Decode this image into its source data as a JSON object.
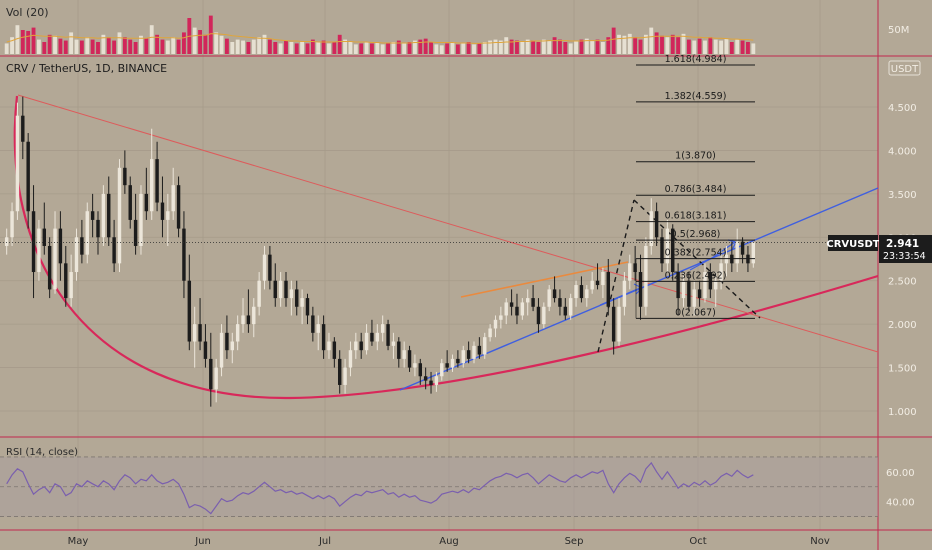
{
  "header": {
    "vol_label": "Vol (20)",
    "symbol_line": "CRV / TetherUS, 1D, BINANCE",
    "currency_badge": "USDT",
    "rsi_label": "RSI (14, close)"
  },
  "price_badge": {
    "symbol": "CRVUSDT",
    "price": "2.941",
    "countdown": "23:33:54",
    "value": 2.941
  },
  "colors": {
    "background": "#b3a896",
    "grid": "#a69b8a",
    "pane_divider": "#c2284f",
    "bull_candle": "#ece6da",
    "bear_candle": "#1c1c1c",
    "vol_bull": "#e6e0d2",
    "vol_bear": "#d1265a",
    "vol_ma": "#e0a53a",
    "rsi_line": "#7a5fae",
    "downtrend_line": "#dd5b5b",
    "uptrend_line": "#3f5fe0",
    "orange_line": "#ea8a3e",
    "cup_curve": "#d8285a",
    "fib_line": "#1a1a1a"
  },
  "chart_data": [
    {
      "type": "candlestick",
      "title": "CRV / TetherUS, 1D, BINANCE",
      "x_labels": [
        "May",
        "Jun",
        "Jul",
        "Aug",
        "Sep",
        "Oct",
        "Nov"
      ],
      "y_ticks": [
        "1.000",
        "1.500",
        "2.000",
        "2.500",
        "3.000",
        "3.500",
        "4.000",
        "4.500"
      ],
      "y_tick_values": [
        1.0,
        1.5,
        2.0,
        2.5,
        3.0,
        3.5,
        4.0,
        4.5
      ],
      "ylim": [
        0.85,
        5.0
      ],
      "grid": true,
      "candles": [
        [
          2.9,
          3.1,
          2.8,
          3.0
        ],
        [
          3.0,
          3.4,
          2.9,
          3.3
        ],
        [
          3.3,
          4.55,
          3.2,
          4.4
        ],
        [
          4.4,
          4.62,
          3.9,
          4.1
        ],
        [
          4.1,
          4.2,
          3.1,
          3.3
        ],
        [
          3.3,
          3.6,
          2.3,
          2.6
        ],
        [
          2.6,
          3.2,
          2.5,
          3.1
        ],
        [
          3.1,
          3.4,
          2.8,
          2.9
        ],
        [
          2.9,
          3.0,
          2.3,
          2.4
        ],
        [
          2.4,
          3.3,
          2.35,
          3.1
        ],
        [
          3.1,
          3.3,
          2.5,
          2.7
        ],
        [
          2.7,
          2.9,
          2.2,
          2.3
        ],
        [
          2.3,
          2.8,
          2.2,
          2.6
        ],
        [
          2.6,
          3.1,
          2.5,
          3.0
        ],
        [
          3.0,
          3.2,
          2.7,
          2.8
        ],
        [
          2.8,
          3.4,
          2.7,
          3.3
        ],
        [
          3.3,
          3.5,
          3.0,
          3.2
        ],
        [
          3.2,
          3.3,
          2.8,
          3.0
        ],
        [
          3.0,
          3.6,
          2.9,
          3.5
        ],
        [
          3.5,
          3.7,
          2.9,
          3.0
        ],
        [
          3.0,
          3.2,
          2.6,
          2.7
        ],
        [
          2.7,
          3.9,
          2.6,
          3.8
        ],
        [
          3.8,
          4.0,
          3.5,
          3.6
        ],
        [
          3.6,
          3.7,
          3.1,
          3.2
        ],
        [
          3.2,
          3.5,
          2.8,
          2.9
        ],
        [
          2.9,
          3.6,
          2.8,
          3.5
        ],
        [
          3.5,
          3.8,
          3.2,
          3.3
        ],
        [
          3.3,
          4.25,
          3.2,
          3.9
        ],
        [
          3.9,
          4.1,
          3.3,
          3.4
        ],
        [
          3.4,
          3.7,
          3.0,
          3.2
        ],
        [
          3.2,
          3.5,
          2.9,
          3.3
        ],
        [
          3.3,
          3.8,
          3.2,
          3.6
        ],
        [
          3.6,
          3.7,
          3.0,
          3.1
        ],
        [
          3.1,
          3.3,
          2.3,
          2.5
        ],
        [
          2.5,
          2.8,
          1.7,
          1.8
        ],
        [
          1.8,
          2.2,
          1.5,
          2.0
        ],
        [
          2.0,
          2.3,
          1.7,
          1.8
        ],
        [
          1.8,
          2.0,
          1.5,
          1.6
        ],
        [
          1.6,
          1.9,
          1.05,
          1.25
        ],
        [
          1.25,
          1.6,
          1.1,
          1.5
        ],
        [
          1.5,
          2.0,
          1.4,
          1.9
        ],
        [
          1.9,
          2.1,
          1.6,
          1.7
        ],
        [
          1.7,
          1.9,
          1.55,
          1.8
        ],
        [
          1.8,
          2.1,
          1.7,
          2.0
        ],
        [
          2.0,
          2.3,
          1.9,
          2.1
        ],
        [
          2.1,
          2.4,
          1.9,
          2.0
        ],
        [
          2.0,
          2.3,
          1.85,
          2.2
        ],
        [
          2.2,
          2.6,
          2.1,
          2.5
        ],
        [
          2.5,
          2.9,
          2.4,
          2.8
        ],
        [
          2.8,
          2.9,
          2.4,
          2.5
        ],
        [
          2.5,
          2.7,
          2.2,
          2.3
        ],
        [
          2.3,
          2.6,
          2.2,
          2.5
        ],
        [
          2.5,
          2.6,
          2.2,
          2.3
        ],
        [
          2.3,
          2.5,
          2.1,
          2.4
        ],
        [
          2.4,
          2.5,
          2.1,
          2.2
        ],
        [
          2.2,
          2.4,
          2.0,
          2.3
        ],
        [
          2.3,
          2.35,
          2.0,
          2.1
        ],
        [
          2.1,
          2.2,
          1.8,
          1.9
        ],
        [
          1.9,
          2.1,
          1.7,
          2.0
        ],
        [
          2.0,
          2.1,
          1.6,
          1.7
        ],
        [
          1.7,
          1.9,
          1.6,
          1.8
        ],
        [
          1.8,
          1.85,
          1.5,
          1.6
        ],
        [
          1.6,
          1.7,
          1.2,
          1.3
        ],
        [
          1.3,
          1.6,
          1.2,
          1.5
        ],
        [
          1.5,
          1.8,
          1.4,
          1.7
        ],
        [
          1.7,
          1.9,
          1.6,
          1.8
        ],
        [
          1.8,
          1.9,
          1.6,
          1.7
        ],
        [
          1.7,
          2.0,
          1.65,
          1.9
        ],
        [
          1.9,
          2.05,
          1.75,
          1.8
        ],
        [
          1.8,
          2.0,
          1.7,
          1.9
        ],
        [
          1.9,
          2.1,
          1.8,
          2.0
        ],
        [
          2.0,
          2.05,
          1.7,
          1.75
        ],
        [
          1.75,
          1.9,
          1.6,
          1.8
        ],
        [
          1.8,
          1.85,
          1.5,
          1.6
        ],
        [
          1.6,
          1.8,
          1.5,
          1.7
        ],
        [
          1.7,
          1.75,
          1.45,
          1.5
        ],
        [
          1.5,
          1.65,
          1.4,
          1.55
        ],
        [
          1.55,
          1.6,
          1.3,
          1.4
        ],
        [
          1.4,
          1.5,
          1.25,
          1.35
        ],
        [
          1.35,
          1.45,
          1.2,
          1.3
        ],
        [
          1.3,
          1.45,
          1.22,
          1.4
        ],
        [
          1.4,
          1.6,
          1.35,
          1.55
        ],
        [
          1.55,
          1.7,
          1.45,
          1.5
        ],
        [
          1.5,
          1.65,
          1.45,
          1.6
        ],
        [
          1.6,
          1.7,
          1.5,
          1.55
        ],
        [
          1.55,
          1.75,
          1.5,
          1.7
        ],
        [
          1.7,
          1.8,
          1.55,
          1.6
        ],
        [
          1.6,
          1.8,
          1.55,
          1.75
        ],
        [
          1.75,
          1.85,
          1.6,
          1.65
        ],
        [
          1.65,
          1.9,
          1.6,
          1.85
        ],
        [
          1.85,
          2.0,
          1.8,
          1.95
        ],
        [
          1.95,
          2.1,
          1.85,
          2.05
        ],
        [
          2.05,
          2.2,
          1.95,
          2.1
        ],
        [
          2.1,
          2.3,
          2.0,
          2.25
        ],
        [
          2.25,
          2.4,
          2.1,
          2.2
        ],
        [
          2.2,
          2.35,
          2.0,
          2.1
        ],
        [
          2.1,
          2.3,
          2.05,
          2.25
        ],
        [
          2.25,
          2.4,
          2.1,
          2.3
        ],
        [
          2.3,
          2.45,
          2.15,
          2.2
        ],
        [
          2.2,
          2.3,
          1.9,
          2.0
        ],
        [
          2.0,
          2.25,
          1.95,
          2.2
        ],
        [
          2.2,
          2.45,
          2.15,
          2.4
        ],
        [
          2.4,
          2.55,
          2.25,
          2.3
        ],
        [
          2.3,
          2.4,
          2.1,
          2.2
        ],
        [
          2.2,
          2.3,
          2.05,
          2.1
        ],
        [
          2.1,
          2.35,
          2.05,
          2.3
        ],
        [
          2.3,
          2.5,
          2.2,
          2.45
        ],
        [
          2.45,
          2.55,
          2.25,
          2.3
        ],
        [
          2.3,
          2.45,
          2.2,
          2.4
        ],
        [
          2.4,
          2.6,
          2.35,
          2.5
        ],
        [
          2.5,
          2.7,
          2.4,
          2.45
        ],
        [
          2.45,
          2.65,
          2.3,
          2.6
        ],
        [
          2.6,
          2.75,
          2.1,
          2.2
        ],
        [
          2.2,
          2.3,
          1.65,
          1.8
        ],
        [
          1.8,
          2.3,
          1.75,
          2.2
        ],
        [
          2.2,
          2.6,
          2.1,
          2.5
        ],
        [
          2.5,
          2.8,
          2.4,
          2.7
        ],
        [
          2.7,
          2.9,
          2.5,
          2.6
        ],
        [
          2.6,
          2.8,
          2.05,
          2.2
        ],
        [
          2.2,
          3.0,
          2.1,
          2.9
        ],
        [
          2.9,
          3.45,
          2.8,
          3.3
        ],
        [
          3.3,
          3.4,
          2.9,
          3.0
        ],
        [
          3.0,
          3.1,
          2.6,
          2.7
        ],
        [
          2.7,
          3.2,
          2.6,
          3.1
        ],
        [
          3.1,
          3.15,
          2.5,
          2.6
        ],
        [
          2.6,
          2.7,
          2.1,
          2.3
        ],
        [
          2.3,
          2.6,
          2.2,
          2.5
        ],
        [
          2.5,
          2.6,
          2.15,
          2.2
        ],
        [
          2.2,
          2.5,
          2.1,
          2.4
        ],
        [
          2.4,
          2.5,
          2.2,
          2.3
        ],
        [
          2.3,
          2.7,
          2.25,
          2.6
        ],
        [
          2.6,
          2.7,
          2.3,
          2.4
        ],
        [
          2.4,
          2.6,
          2.2,
          2.5
        ],
        [
          2.5,
          2.85,
          2.4,
          2.7
        ],
        [
          2.7,
          2.9,
          2.55,
          2.8
        ],
        [
          2.8,
          2.95,
          2.6,
          2.7
        ],
        [
          2.7,
          3.1,
          2.6,
          2.95
        ],
        [
          2.95,
          3.0,
          2.7,
          2.8
        ],
        [
          2.8,
          2.9,
          2.6,
          2.7
        ],
        [
          2.7,
          2.95,
          2.65,
          2.941
        ]
      ],
      "price_line": 2.941
    },
    {
      "type": "bar",
      "title": "Vol (20)",
      "y_ticks": [
        "50M"
      ],
      "ylim": [
        0,
        100
      ],
      "values": [
        22,
        35,
        60,
        50,
        48,
        55,
        30,
        25,
        40,
        38,
        32,
        28,
        45,
        30,
        28,
        35,
        30,
        25,
        40,
        35,
        28,
        45,
        35,
        30,
        25,
        38,
        32,
        60,
        40,
        30,
        28,
        35,
        30,
        45,
        75,
        55,
        50,
        40,
        80,
        45,
        38,
        32,
        25,
        30,
        28,
        25,
        30,
        35,
        40,
        30,
        25,
        22,
        28,
        25,
        22,
        25,
        22,
        30,
        25,
        28,
        22,
        25,
        40,
        30,
        25,
        20,
        22,
        25,
        22,
        24,
        20,
        22,
        25,
        28,
        22,
        25,
        28,
        30,
        32,
        25,
        20,
        18,
        22,
        25,
        20,
        22,
        25,
        20,
        22,
        25,
        28,
        30,
        28,
        35,
        30,
        28,
        25,
        30,
        28,
        25,
        30,
        28,
        35,
        30,
        25,
        22,
        28,
        30,
        32,
        28,
        30,
        25,
        35,
        55,
        40,
        38,
        42,
        35,
        30,
        40,
        55,
        45,
        38,
        35,
        40,
        35,
        42,
        30,
        28,
        32,
        28,
        35,
        30,
        28,
        32,
        25,
        30,
        28,
        25,
        22
      ],
      "ma": [
        25,
        28,
        32,
        35,
        37,
        39,
        38,
        37,
        37,
        37,
        36,
        35,
        36,
        35,
        34,
        34,
        34,
        33,
        34,
        34,
        34,
        34,
        33,
        33,
        33,
        33,
        33,
        35,
        35,
        34,
        34,
        34,
        33,
        34,
        37,
        38,
        39,
        39,
        42,
        42,
        41,
        40,
        38,
        37,
        36,
        35,
        34,
        33,
        33,
        32,
        30,
        29,
        28,
        27,
        27,
        26,
        26,
        26,
        25,
        25,
        25,
        25,
        26,
        26,
        26,
        25,
        25,
        25,
        24,
        24,
        23,
        23,
        23,
        23,
        23,
        23,
        24,
        24,
        25,
        25,
        24,
        24,
        24,
        24,
        23,
        23,
        23,
        22,
        22,
        23,
        23,
        24,
        24,
        25,
        25,
        26,
        26,
        26,
        27,
        27,
        27,
        28,
        28,
        28,
        28,
        27,
        27,
        27,
        28,
        28,
        28,
        28,
        29,
        31,
        32,
        33,
        34,
        34,
        34,
        35,
        36,
        37,
        37,
        37,
        37,
        37,
        37,
        36,
        35,
        35,
        34,
        34,
        33,
        33,
        32,
        31,
        31,
        30,
        30,
        29
      ]
    },
    {
      "type": "line",
      "title": "RSI (14, close)",
      "y_ticks": [
        "40.00",
        "60.00"
      ],
      "y_tick_values": [
        40,
        60
      ],
      "ylim": [
        25,
        78
      ],
      "bands": [
        30,
        50,
        70
      ],
      "values": [
        52,
        58,
        62,
        60,
        52,
        45,
        48,
        50,
        46,
        52,
        50,
        44,
        46,
        52,
        50,
        54,
        52,
        50,
        54,
        52,
        48,
        54,
        58,
        56,
        52,
        55,
        54,
        58,
        54,
        52,
        53,
        55,
        52,
        45,
        36,
        38,
        37,
        35,
        32,
        37,
        42,
        40,
        41,
        44,
        46,
        45,
        47,
        50,
        53,
        50,
        47,
        48,
        46,
        47,
        45,
        46,
        44,
        42,
        44,
        42,
        44,
        42,
        37,
        40,
        43,
        45,
        44,
        47,
        46,
        47,
        48,
        45,
        46,
        43,
        45,
        43,
        44,
        41,
        40,
        39,
        41,
        45,
        46,
        47,
        46,
        48,
        46,
        49,
        48,
        51,
        54,
        56,
        57,
        59,
        58,
        56,
        58,
        59,
        56,
        52,
        55,
        58,
        56,
        54,
        53,
        56,
        58,
        56,
        58,
        60,
        59,
        61,
        52,
        46,
        52,
        56,
        59,
        57,
        53,
        62,
        66,
        60,
        55,
        60,
        55,
        49,
        52,
        50,
        53,
        51,
        54,
        51,
        53,
        57,
        59,
        57,
        61,
        58,
        56,
        58
      ]
    }
  ],
  "fib_levels": [
    {
      "label": "1.618(4.984)",
      "value": 4.984
    },
    {
      "label": "1.382(4.559)",
      "value": 4.559
    },
    {
      "label": "1(3.870)",
      "value": 3.87
    },
    {
      "label": "0.786(3.484)",
      "value": 3.484
    },
    {
      "label": "0.618(3.181)",
      "value": 3.181
    },
    {
      "label": "0.5(2.968)",
      "value": 2.968
    },
    {
      "label": "0.382(2.754)",
      "value": 2.754
    },
    {
      "label": "0.236(2.492)",
      "value": 2.492
    },
    {
      "label": "0(2.067)",
      "value": 2.067
    }
  ]
}
